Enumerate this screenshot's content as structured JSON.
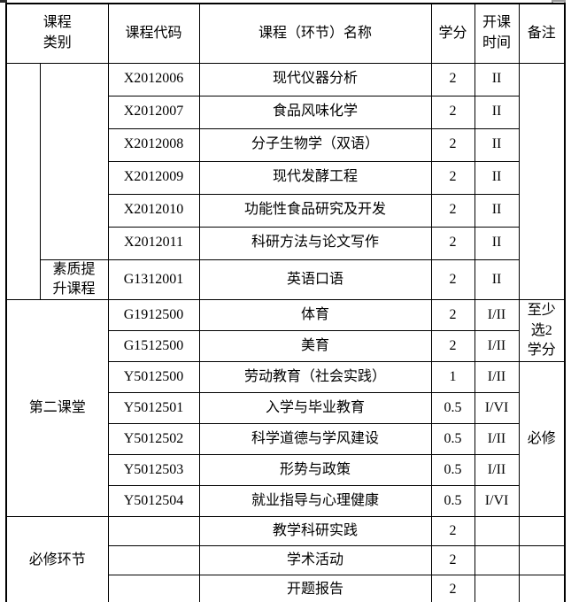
{
  "table": {
    "header": {
      "category": "课程\n类别",
      "code": "课程代码",
      "name": "课程（环节）名称",
      "credits": "学分",
      "time": "开课\n时间",
      "remark": "备注"
    },
    "categories": {
      "section1_main": "",
      "section1_sub_top": "",
      "section1_sub_bottom": "素质提\n升课程",
      "section2": "第二课堂",
      "section3": "必修环节"
    },
    "remarks": {
      "section1": "",
      "min_credits": "至少\n选2\n学分",
      "required": "必修"
    },
    "rows": [
      {
        "code": "X2012006",
        "name": "现代仪器分析",
        "credits": "2",
        "time": "II"
      },
      {
        "code": "X2012007",
        "name": "食品风味化学",
        "credits": "2",
        "time": "II"
      },
      {
        "code": "X2012008",
        "name": "分子生物学（双语）",
        "credits": "2",
        "time": "II"
      },
      {
        "code": "X2012009",
        "name": "现代发酵工程",
        "credits": "2",
        "time": "II"
      },
      {
        "code": "X2012010",
        "name": "功能性食品研究及开发",
        "credits": "2",
        "time": "II"
      },
      {
        "code": "X2012011",
        "name": "科研方法与论文写作",
        "credits": "2",
        "time": "II"
      },
      {
        "code": "G1312001",
        "name": "英语口语",
        "credits": "2",
        "time": "II"
      },
      {
        "code": "G1912500",
        "name": "体育",
        "credits": "2",
        "time": "I/II"
      },
      {
        "code": "G1512500",
        "name": "美育",
        "credits": "2",
        "time": "I/II"
      },
      {
        "code": "Y5012500",
        "name": "劳动教育（社会实践）",
        "credits": "1",
        "time": "I/II"
      },
      {
        "code": "Y5012501",
        "name": "入学与毕业教育",
        "credits": "0.5",
        "time": "I/VI"
      },
      {
        "code": "Y5012502",
        "name": "科学道德与学风建设",
        "credits": "0.5",
        "time": "I/II"
      },
      {
        "code": "Y5012503",
        "name": "形势与政策",
        "credits": "0.5",
        "time": "I/II"
      },
      {
        "code": "Y5012504",
        "name": "就业指导与心理健康",
        "credits": "0.5",
        "time": "I/VI"
      },
      {
        "code": "",
        "name": "教学科研实践",
        "credits": "2",
        "time": ""
      },
      {
        "code": "",
        "name": "学术活动",
        "credits": "2",
        "time": ""
      },
      {
        "code": "",
        "name": "开题报告",
        "credits": "2",
        "time": ""
      }
    ]
  },
  "colors": {
    "border": "#000000",
    "text": "#000000",
    "background": "#ffffff"
  }
}
